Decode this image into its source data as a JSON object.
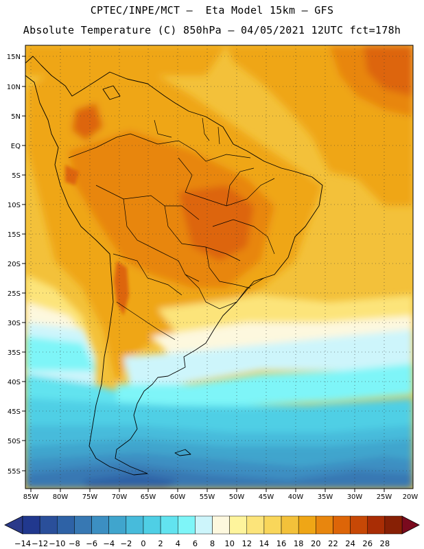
{
  "header": {
    "line1": "CPTEC/INPE/MCT –  Eta Model 15km – GFS",
    "line2": "Absolute Temperature (C) 850hPa – 04/05/2021 12UTC fct=178h"
  },
  "map": {
    "lat_labels": [
      "15N",
      "10N",
      "5N",
      "EQ",
      "5S",
      "10S",
      "15S",
      "20S",
      "25S",
      "30S",
      "35S",
      "40S",
      "45S",
      "50S",
      "55S"
    ],
    "lon_labels": [
      "85W",
      "80W",
      "75W",
      "70W",
      "65W",
      "60W",
      "55W",
      "50W",
      "45W",
      "40W",
      "35W",
      "30W",
      "25W",
      "20W"
    ]
  },
  "colorbar": {
    "labels": [
      "-14",
      "-12",
      "-10",
      "-8",
      "-6",
      "-4",
      "-2",
      "0",
      "2",
      "4",
      "6",
      "8",
      "10",
      "12",
      "14",
      "16",
      "18",
      "20",
      "22",
      "24",
      "26",
      "28"
    ],
    "colors": [
      "#21388e",
      "#2a4f9a",
      "#2e62a6",
      "#3778b3",
      "#3c8fc2",
      "#40a5cd",
      "#47bbdb",
      "#4fcfe5",
      "#62e3ef",
      "#7ef5f8",
      "#cdf5fb",
      "#fdf8de",
      "#fef49c",
      "#fce47a",
      "#f9d65a",
      "#f3c13a",
      "#efa616",
      "#e8860e",
      "#dd6508",
      "#c74806",
      "#a92d05",
      "#872005"
    ],
    "under_color": "#2a3a8a",
    "over_color": "#7a0a1e"
  }
}
